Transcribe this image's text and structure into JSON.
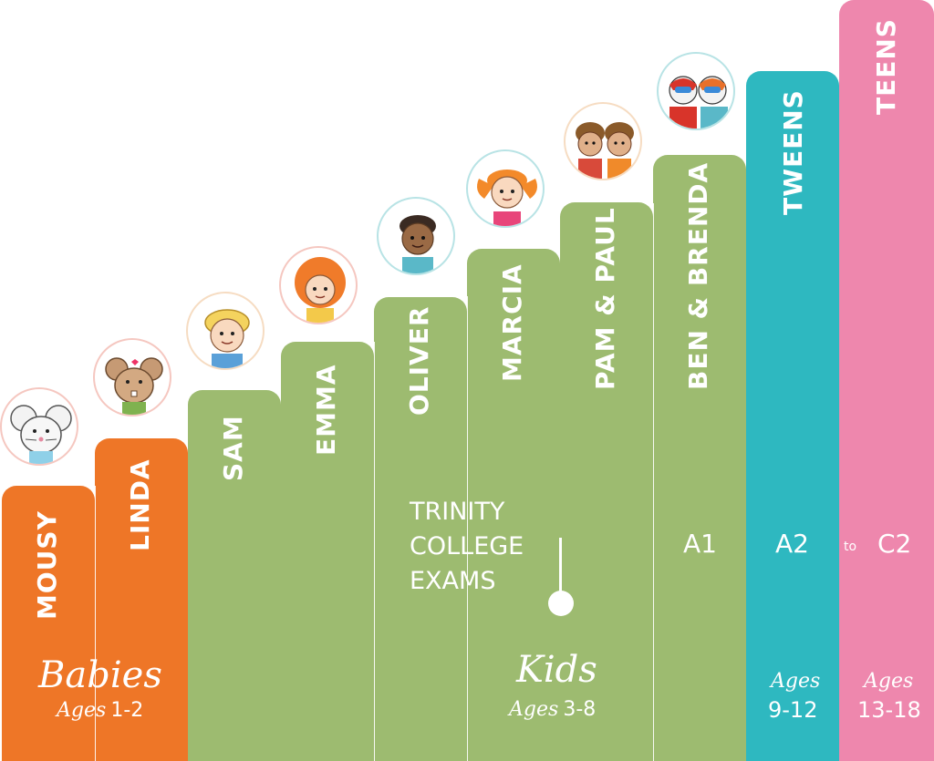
{
  "levels": {
    "characters": [
      "MOUSY",
      "LINDA",
      "SAM",
      "EMMA",
      "OLIVER",
      "MARCIA",
      "PAM & PAUL",
      "BEN & BRENDA",
      "TWEENS",
      "TEENS"
    ],
    "cefr": {
      "a1": "A1",
      "a2": "A2",
      "to": "to",
      "c2": "C2"
    }
  },
  "exams_label": [
    "TRINITY",
    "COLLEGE",
    "EXAMS"
  ],
  "groups": {
    "babies": {
      "title": "Babies",
      "ages_word": "Ages",
      "ages_range": "1-2"
    },
    "kids": {
      "title": "Kids",
      "ages_word": "Ages",
      "ages_range": "3-8"
    },
    "tweens": {
      "ages_word": "Ages",
      "ages_range": "9-12"
    },
    "teens": {
      "ages_word": "Ages",
      "ages_range": "13-18"
    }
  },
  "colors": {
    "babies": "#ee7627",
    "kids": "#9dbb70",
    "tweens": "#2eb8c0",
    "teens": "#ee87ad"
  },
  "avatars": [
    "mouse-icon",
    "linda-mouse-icon",
    "sam-boy-icon",
    "emma-girl-icon",
    "oliver-boy-icon",
    "marcia-girl-icon",
    "pam-paul-twins-icon",
    "ben-brenda-superheroes-icon"
  ]
}
